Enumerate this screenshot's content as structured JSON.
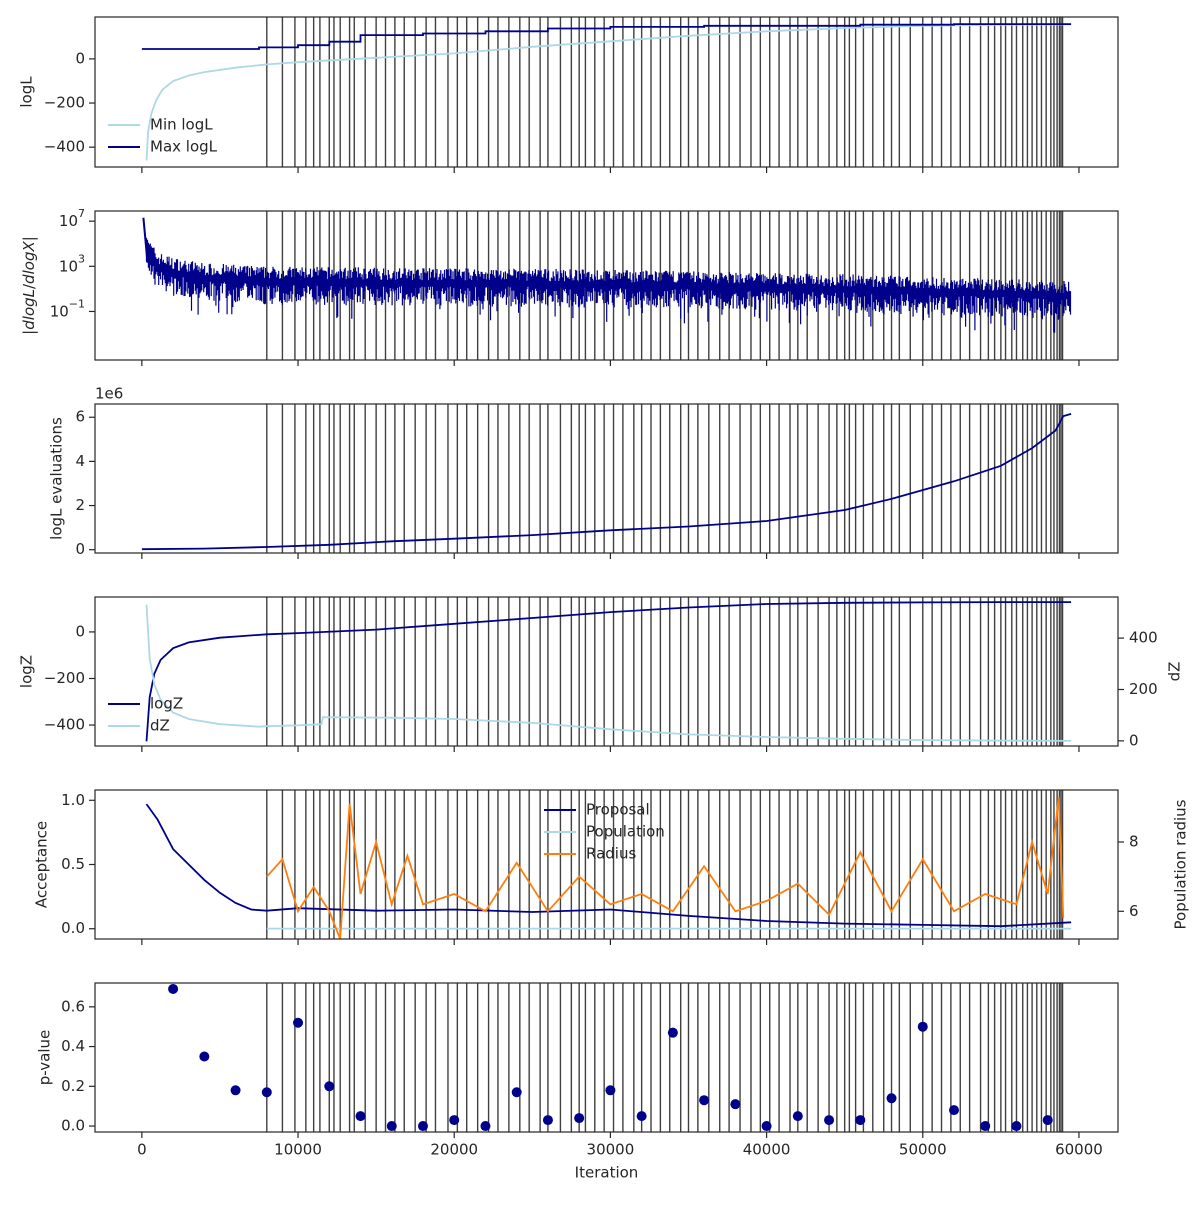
{
  "colors": {
    "dark": "#00008b",
    "light": "#add8e6",
    "orange": "#ff7f0e",
    "vline": "#404040",
    "axis": "#262626"
  },
  "chart_data": [
    {
      "type": "line",
      "panel": "logL",
      "ylabel": "logL",
      "xlim": [
        -3000,
        62500
      ],
      "ylim": [
        -490,
        190
      ],
      "yticks": [
        0,
        -200,
        -400
      ],
      "ytick_labels": [
        "0",
        "−200",
        "−400"
      ],
      "legend": "lower-left",
      "series": [
        {
          "name": "Min logL",
          "color": "light",
          "x": [
            300,
            400,
            600,
            900,
            1300,
            2000,
            3000,
            4000,
            6000,
            8000,
            10000,
            15000,
            20000,
            25000,
            30000,
            35000,
            40000,
            45000,
            50000,
            55000,
            59500
          ],
          "y": [
            -460,
            -330,
            -250,
            -190,
            -140,
            -100,
            -75,
            -60,
            -40,
            -25,
            -15,
            5,
            25,
            55,
            80,
            105,
            125,
            140,
            150,
            155,
            157
          ]
        },
        {
          "name": "Max logL",
          "color": "dark",
          "step": true,
          "x": [
            0,
            7500,
            7500,
            10000,
            10000,
            12000,
            12000,
            14000,
            14000,
            18000,
            18000,
            22000,
            22000,
            26000,
            26000,
            30000,
            30000,
            36000,
            36000,
            46000,
            46000,
            52000,
            52000,
            59500
          ],
          "y": [
            45,
            45,
            52,
            52,
            62,
            62,
            78,
            78,
            108,
            108,
            115,
            115,
            125,
            125,
            138,
            138,
            145,
            145,
            150,
            150,
            155,
            155,
            158,
            158
          ]
        }
      ]
    },
    {
      "type": "line",
      "panel": "dlogL",
      "ylabel": "|dlogL/dlogX|",
      "yscale": "log",
      "xlim": [
        -3000,
        62500
      ],
      "ylim_log10": [
        -5.3,
        7.9
      ],
      "yticks_log10": [
        7,
        3,
        -1
      ],
      "ytick_labels": [
        "10^7",
        "10^3",
        "10^-1"
      ],
      "series": [
        {
          "name": "",
          "color": "dark",
          "x": [
            0,
            500,
            1000,
            2000,
            4000,
            8000,
            15000,
            25000,
            35000,
            45000,
            55000,
            59500
          ],
          "y_log10": [
            7.3,
            4.0,
            3.0,
            2.5,
            2.0,
            1.7,
            1.6,
            1.5,
            1.3,
            1.0,
            0.6,
            0.4
          ]
        }
      ]
    },
    {
      "type": "line",
      "panel": "evaluations",
      "ylabel": "logL evaluations",
      "offset_label": "1e6",
      "xlim": [
        -3000,
        62500
      ],
      "ylim": [
        -0.15,
        6.6
      ],
      "yticks": [
        0,
        2,
        4,
        6
      ],
      "ytick_labels": [
        "0",
        "2",
        "4",
        "6"
      ],
      "series": [
        {
          "name": "",
          "color": "dark",
          "x": [
            0,
            4000,
            8000,
            12000,
            16000,
            20000,
            25000,
            30000,
            35000,
            40000,
            45000,
            48000,
            52000,
            55000,
            57000,
            58500,
            59000,
            59500
          ],
          "y": [
            0.02,
            0.05,
            0.12,
            0.22,
            0.38,
            0.5,
            0.66,
            0.88,
            1.05,
            1.3,
            1.8,
            2.3,
            3.1,
            3.8,
            4.6,
            5.4,
            6.05,
            6.15
          ]
        }
      ]
    },
    {
      "type": "line",
      "panel": "logZ",
      "ylabel": "logZ",
      "ylabel_right": "dZ",
      "xlim": [
        -3000,
        62500
      ],
      "ylim": [
        -490,
        150
      ],
      "ylim_right": [
        -20,
        560
      ],
      "yticks": [
        0,
        -200,
        -400
      ],
      "ytick_labels": [
        "0",
        "−200",
        "−400"
      ],
      "yticks_right": [
        400,
        200,
        0
      ],
      "ytick_labels_right": [
        "400",
        "200",
        "0"
      ],
      "legend": "lower-left",
      "series": [
        {
          "name": "logZ",
          "color": "dark",
          "axis": "left",
          "x": [
            300,
            500,
            800,
            1200,
            2000,
            3000,
            5000,
            8000,
            10000,
            15000,
            20000,
            25000,
            30000,
            35000,
            40000,
            45000,
            50000,
            55000,
            59500
          ],
          "y": [
            -470,
            -280,
            -180,
            -120,
            -70,
            -45,
            -25,
            -10,
            -5,
            10,
            35,
            60,
            85,
            105,
            120,
            125,
            127,
            128,
            128
          ]
        },
        {
          "name": "dZ",
          "color": "light",
          "axis": "right",
          "x": [
            300,
            500,
            800,
            1200,
            2000,
            3000,
            5000,
            7500,
            8000,
            10000,
            11500,
            11600,
            16000,
            20000,
            25000,
            30000,
            35000,
            40000,
            45000,
            50000,
            55000,
            59500
          ],
          "y": [
            530,
            320,
            220,
            160,
            110,
            85,
            65,
            55,
            57,
            60,
            65,
            92,
            90,
            85,
            70,
            45,
            25,
            15,
            8,
            3,
            1,
            0
          ]
        }
      ]
    },
    {
      "type": "line",
      "panel": "acceptance",
      "ylabel": "Acceptance",
      "ylabel_right": "Population radius",
      "xlim": [
        -3000,
        62500
      ],
      "ylim": [
        -0.08,
        1.08
      ],
      "ylim_right": [
        5.2,
        9.5
      ],
      "yticks": [
        1.0,
        0.5,
        0.0
      ],
      "ytick_labels": [
        "1.0",
        "0.5",
        "0.0"
      ],
      "yticks_right": [
        8,
        6
      ],
      "ytick_labels_right": [
        "8",
        "6"
      ],
      "legend": "upper-center",
      "series": [
        {
          "name": "Proposal",
          "color": "dark",
          "axis": "left",
          "x": [
            300,
            1000,
            2000,
            3000,
            4000,
            5000,
            6000,
            7000,
            8000,
            10000,
            15000,
            20000,
            25000,
            30000,
            35000,
            40000,
            45000,
            50000,
            55000,
            59500
          ],
          "y": [
            0.97,
            0.85,
            0.62,
            0.5,
            0.38,
            0.28,
            0.2,
            0.15,
            0.14,
            0.16,
            0.14,
            0.15,
            0.13,
            0.15,
            0.1,
            0.06,
            0.04,
            0.03,
            0.02,
            0.05
          ]
        },
        {
          "name": "Population",
          "color": "light",
          "axis": "right",
          "x": [
            8000,
            59500
          ],
          "y": [
            5.5,
            5.5
          ]
        },
        {
          "name": "Radius",
          "color": "orange",
          "axis": "right",
          "x": [
            8000,
            9000,
            10000,
            11000,
            12000,
            12700,
            13300,
            14000,
            15000,
            16000,
            17000,
            18000,
            20000,
            22000,
            24000,
            26000,
            28000,
            30000,
            32000,
            34000,
            36000,
            38000,
            40000,
            42000,
            44000,
            46000,
            48000,
            50000,
            52000,
            54000,
            56000,
            57000,
            58000,
            58700,
            59000
          ],
          "y": [
            7.0,
            7.5,
            6.0,
            6.7,
            6.0,
            5.2,
            9.1,
            6.5,
            8.0,
            6.2,
            7.6,
            6.2,
            6.5,
            6.0,
            7.4,
            6.0,
            7.0,
            6.2,
            6.5,
            6.0,
            7.3,
            6.0,
            6.3,
            6.8,
            5.9,
            7.7,
            6.0,
            7.5,
            6.0,
            6.5,
            6.2,
            8.0,
            6.5,
            9.3,
            5.8
          ]
        }
      ]
    },
    {
      "type": "scatter",
      "panel": "pvalue",
      "ylabel": "p-value",
      "xlabel": "Iteration",
      "xlim": [
        -3000,
        62500
      ],
      "ylim": [
        -0.03,
        0.72
      ],
      "yticks": [
        0.6,
        0.4,
        0.2,
        0.0
      ],
      "ytick_labels": [
        "0.6",
        "0.4",
        "0.2",
        "0.0"
      ],
      "xticks": [
        0,
        10000,
        20000,
        30000,
        40000,
        50000,
        60000
      ],
      "xtick_labels": [
        "0",
        "10000",
        "20000",
        "30000",
        "40000",
        "50000",
        "60000"
      ],
      "series": [
        {
          "name": "",
          "color": "dark",
          "x": [
            2000,
            4000,
            6000,
            8000,
            10000,
            12000,
            14000,
            16000,
            18000,
            20000,
            22000,
            24000,
            26000,
            28000,
            30000,
            32000,
            34000,
            36000,
            38000,
            40000,
            42000,
            44000,
            46000,
            48000,
            50000,
            52000,
            54000,
            56000,
            58000
          ],
          "y": [
            0.69,
            0.35,
            0.18,
            0.17,
            0.52,
            0.2,
            0.05,
            0.0,
            0.0,
            0.03,
            0.0,
            0.17,
            0.03,
            0.04,
            0.18,
            0.05,
            0.47,
            0.13,
            0.11,
            0.0,
            0.05,
            0.03,
            0.03,
            0.14,
            0.5,
            0.08,
            0.0,
            0.0,
            0.03
          ]
        }
      ]
    }
  ],
  "vlines_x": [
    8000,
    9000,
    9800,
    10500,
    11000,
    11400,
    12000,
    12300,
    12700,
    13300,
    13600,
    14300,
    15000,
    15600,
    16200,
    16800,
    17500,
    18200,
    18800,
    19600,
    20200,
    20800,
    21500,
    22200,
    22800,
    23500,
    24200,
    24800,
    25500,
    26000,
    26800,
    27500,
    28000,
    28400,
    29000,
    29600,
    30200,
    30800,
    31500,
    32000,
    32600,
    33200,
    33800,
    34500,
    35000,
    35600,
    36300,
    37000,
    37600,
    38300,
    39000,
    39600,
    40200,
    40800,
    41500,
    42000,
    42600,
    43300,
    44000,
    44500,
    45000,
    45300,
    45700,
    46200,
    46800,
    47500,
    48000,
    48500,
    49200,
    50000,
    50600,
    51200,
    51800,
    52400,
    53000,
    53700,
    54200,
    54600,
    55000,
    55300,
    55700,
    56000,
    56400,
    56700,
    57000,
    57300,
    57600,
    57900,
    58200,
    58400,
    58600,
    58750,
    58850,
    58950
  ]
}
